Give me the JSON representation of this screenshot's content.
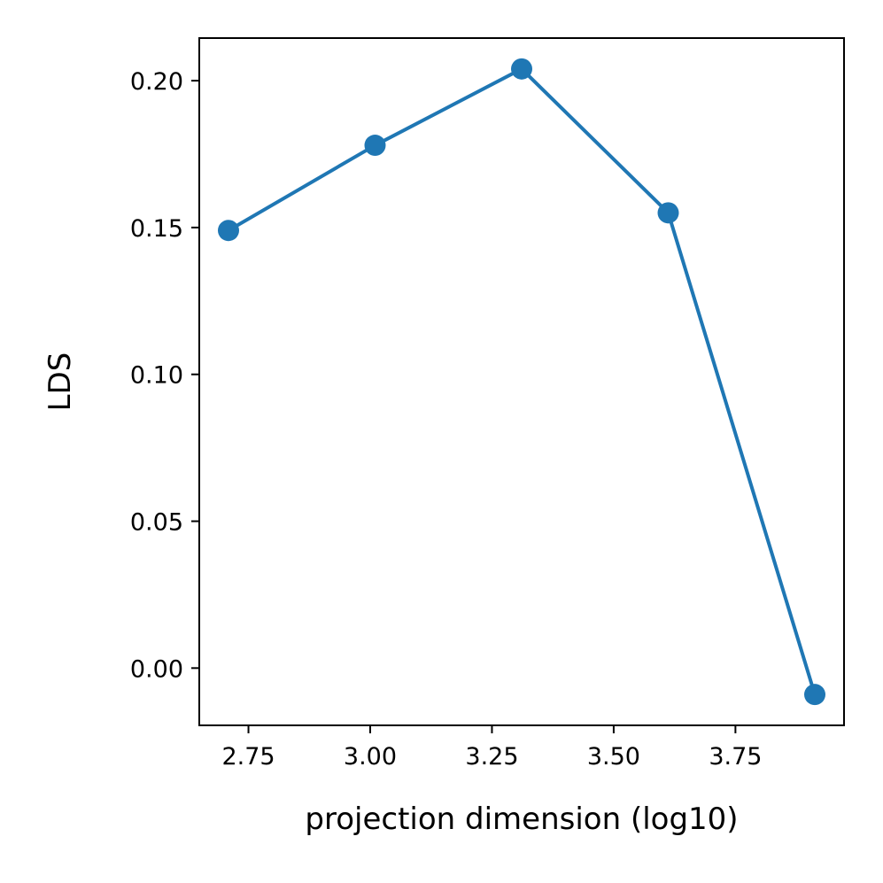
{
  "chart_data": {
    "type": "line",
    "title": "",
    "xlabel": "projection dimension (log10)",
    "ylabel": "LDS",
    "x": [
      2.709,
      3.01,
      3.311,
      3.612,
      3.913
    ],
    "series": [
      {
        "values": [
          0.149,
          0.178,
          0.204,
          0.155,
          -0.009
        ],
        "color": "#1f77b4"
      }
    ],
    "xlim": [
      2.649,
      3.973
    ],
    "ylim": [
      -0.0195,
      0.2145
    ],
    "xticks": [
      2.75,
      3.0,
      3.25,
      3.5,
      3.75
    ],
    "xtick_labels": [
      "2.75",
      "3.00",
      "3.25",
      "3.50",
      "3.75"
    ],
    "yticks": [
      0.0,
      0.05,
      0.1,
      0.15,
      0.2
    ],
    "ytick_labels": [
      "0.00",
      "0.05",
      "0.10",
      "0.15",
      "0.20"
    ],
    "grid": false,
    "marker": "circle"
  }
}
